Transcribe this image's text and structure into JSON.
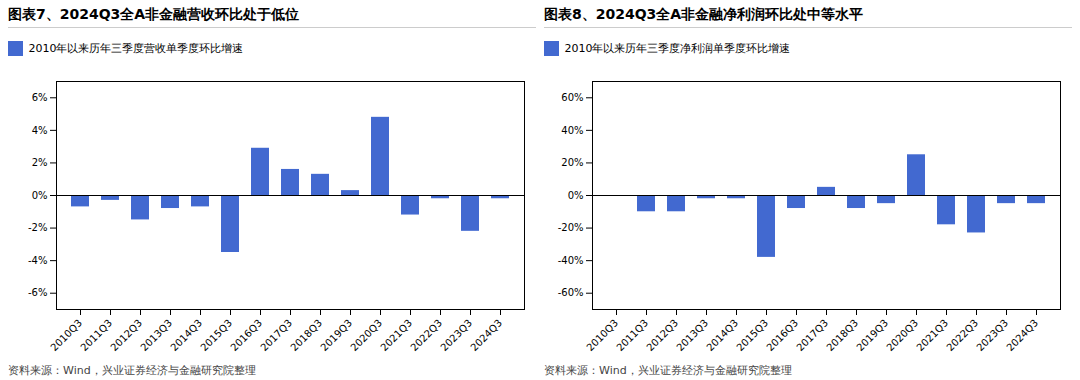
{
  "chart_data": [
    {
      "type": "bar",
      "title": "图表7、2024Q3全A非金融营收环比处于低位",
      "categories": [
        "2010Q3",
        "2011Q3",
        "2012Q3",
        "2013Q3",
        "2014Q3",
        "2015Q3",
        "2016Q3",
        "2017Q3",
        "2018Q3",
        "2019Q3",
        "2020Q3",
        "2021Q3",
        "2022Q3",
        "2023Q3",
        "2024Q3"
      ],
      "series": [
        {
          "name": "2010年以来历年三季度营收单季度环比增速",
          "values": [
            -0.7,
            -0.3,
            -1.5,
            -0.8,
            -0.7,
            -3.5,
            2.9,
            1.6,
            1.3,
            0.3,
            4.8,
            -1.2,
            -0.2,
            -2.2,
            -0.2
          ]
        }
      ],
      "ylim": [
        -7,
        7
      ],
      "yticks": [
        {
          "value": -6,
          "label": "-6%"
        },
        {
          "value": -4,
          "label": "-4%"
        },
        {
          "value": -2,
          "label": "-2%"
        },
        {
          "value": 0,
          "label": "0%"
        },
        {
          "value": 2,
          "label": "2%"
        },
        {
          "value": 4,
          "label": "4%"
        },
        {
          "value": 6,
          "label": "6%"
        }
      ],
      "grid": false,
      "legend": "upper left",
      "annotations": [
        "资料来源：Wind，兴业证券经济与金融研究院整理"
      ]
    },
    {
      "type": "bar",
      "title": "图表8、2024Q3全A非金融净利润环比处中等水平",
      "categories": [
        "2010Q3",
        "2011Q3",
        "2012Q3",
        "2013Q3",
        "2014Q3",
        "2015Q3",
        "2016Q3",
        "2017Q3",
        "2018Q3",
        "2019Q3",
        "2020Q3",
        "2021Q3",
        "2022Q3",
        "2023Q3",
        "2024Q3"
      ],
      "series": [
        {
          "name": "2010年以来历年三季度净利润单季度环比增速",
          "values": [
            -0.5,
            -10,
            -10,
            -2,
            -2,
            -38,
            -8,
            5,
            -8,
            -5,
            25,
            -18,
            -23,
            -5,
            -5
          ]
        }
      ],
      "ylim": [
        -70,
        70
      ],
      "yticks": [
        {
          "value": -60,
          "label": "-60%"
        },
        {
          "value": -40,
          "label": "-40%"
        },
        {
          "value": -20,
          "label": "-20%"
        },
        {
          "value": 0,
          "label": "0%"
        },
        {
          "value": 20,
          "label": "20%"
        },
        {
          "value": 40,
          "label": "40%"
        },
        {
          "value": 60,
          "label": "60%"
        }
      ],
      "grid": false,
      "legend": "upper left",
      "annotations": [
        "资料来源：Wind，兴业证券经济与金融研究院整理"
      ]
    }
  ]
}
